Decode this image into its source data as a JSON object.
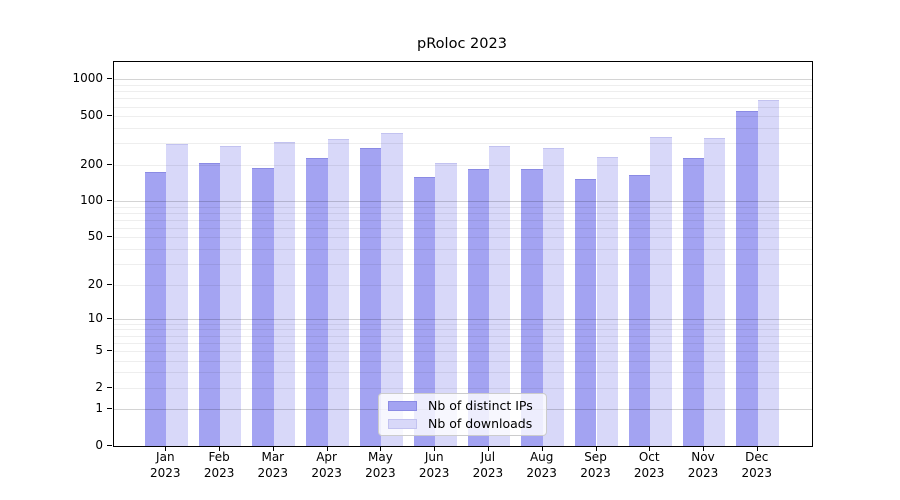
{
  "title": "pRoloc 2023",
  "legend": {
    "items": [
      {
        "label": "Nb of distinct IPs"
      },
      {
        "label": "Nb of downloads"
      }
    ]
  },
  "accent_colors": {
    "distinct_ips_fill": "#a3a3f2",
    "distinct_ips_edge": "#8b8be4",
    "downloads_fill": "#d8d8f9",
    "downloads_edge": "#c2c2f0"
  },
  "chart_data": {
    "type": "bar",
    "title": "pRoloc 2023",
    "categories": [
      "Jan 2023",
      "Feb 2023",
      "Mar 2023",
      "Apr 2023",
      "May 2023",
      "Jun 2023",
      "Jul 2023",
      "Aug 2023",
      "Sep 2023",
      "Oct 2023",
      "Nov 2023",
      "Dec 2023"
    ],
    "series": [
      {
        "name": "Nb of distinct IPs",
        "color": "#a3a3f2",
        "edge_color": "#8b8be4",
        "values": [
          174,
          205,
          188,
          225,
          272,
          158,
          184,
          184,
          151,
          166,
          228,
          550
        ]
      },
      {
        "name": "Nb of downloads",
        "color": "#d8d8f9",
        "edge_color": "#c2c2f0",
        "values": [
          297,
          285,
          308,
          326,
          361,
          207,
          285,
          276,
          231,
          339,
          329,
          673
        ]
      }
    ],
    "y_scale": "log10(1+x)",
    "y_ticks": [
      1000,
      500,
      200,
      100,
      50,
      20,
      10,
      5,
      2,
      1,
      0
    ],
    "ylim": [
      0,
      1390
    ],
    "xlabel": "",
    "ylabel": "",
    "grid": true,
    "grid_minor_ticks_per_decade": [
      2,
      3,
      4,
      5,
      6,
      7,
      8,
      9
    ],
    "legend_position": "lower center"
  }
}
